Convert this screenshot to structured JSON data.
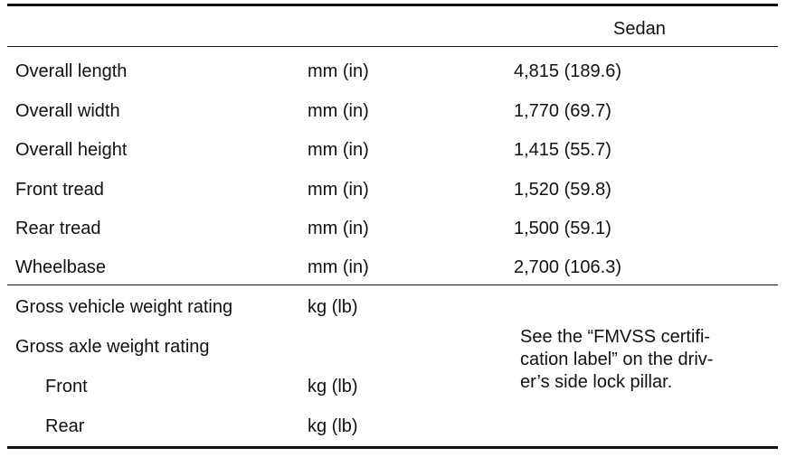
{
  "table": {
    "header": "Sedan",
    "dimensions": [
      {
        "name": "Overall length",
        "unit": "mm (in)",
        "value": "4,815 (189.6)"
      },
      {
        "name": "Overall width",
        "unit": "mm (in)",
        "value": "1,770 (69.7)"
      },
      {
        "name": "Overall height",
        "unit": "mm (in)",
        "value": "1,415 (55.7)"
      },
      {
        "name": "Front tread",
        "unit": "mm (in)",
        "value": "1,520 (59.8)"
      },
      {
        "name": "Rear tread",
        "unit": "mm (in)",
        "value": "1,500 (59.1)"
      },
      {
        "name": "Wheelbase",
        "unit": "mm (in)",
        "value": "2,700 (106.3)"
      }
    ],
    "weights": [
      {
        "name": "Gross vehicle weight rating",
        "unit": "kg (lb)"
      },
      {
        "name": "Gross axle weight rating",
        "unit": ""
      },
      {
        "name": "Front",
        "unit": "kg (lb)"
      },
      {
        "name": "Rear",
        "unit": "kg (lb)"
      }
    ],
    "note": "See the “FMVSS certifi-\ncation label” on the driv-\ner’s side lock pillar."
  }
}
